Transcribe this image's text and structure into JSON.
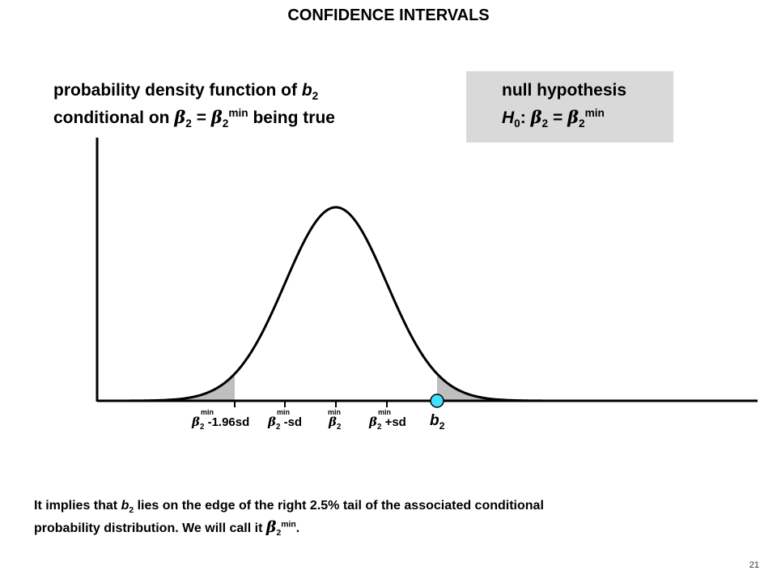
{
  "title": "CONFIDENCE INTERVALS",
  "pdf_label": {
    "line1_prefix": "probability density function of ",
    "line1_var": "b",
    "line1_sub": "2",
    "line2_prefix": "conditional on ",
    "beta": "β",
    "beta_sub": "2",
    "equals": " = ",
    "min_sup": "min",
    "line2_suffix": " being true"
  },
  "null_hypothesis": {
    "title": "null hypothesis",
    "h": "H",
    "h_sub": "0",
    "colon": ": ",
    "beta": "β",
    "beta_sub": "2",
    "equals": " = ",
    "min_sup": "min"
  },
  "axis_labels": {
    "beta": "β",
    "sub": "2",
    "min": "min",
    "minus_196sd": " -1.96sd",
    "minus_sd": " -sd",
    "plus_sd": " +sd",
    "b": "b",
    "b_sub": "2"
  },
  "explanation": {
    "line1_prefix": "It implies that ",
    "b": "b",
    "b_sub": "2",
    "line1_suffix": " lies on the edge of the right 2.5% tail of the associated conditional",
    "line2_prefix": "probability distribution.  We will call it ",
    "beta": "β",
    "beta_sub": "2",
    "min_sup": "min",
    "period": "."
  },
  "page_number": "21",
  "colors": {
    "tail_fill": "#bfbfbf",
    "box_fill": "#d9d9d9",
    "marker_fill": "#40e0ff",
    "curve": "#000000"
  }
}
